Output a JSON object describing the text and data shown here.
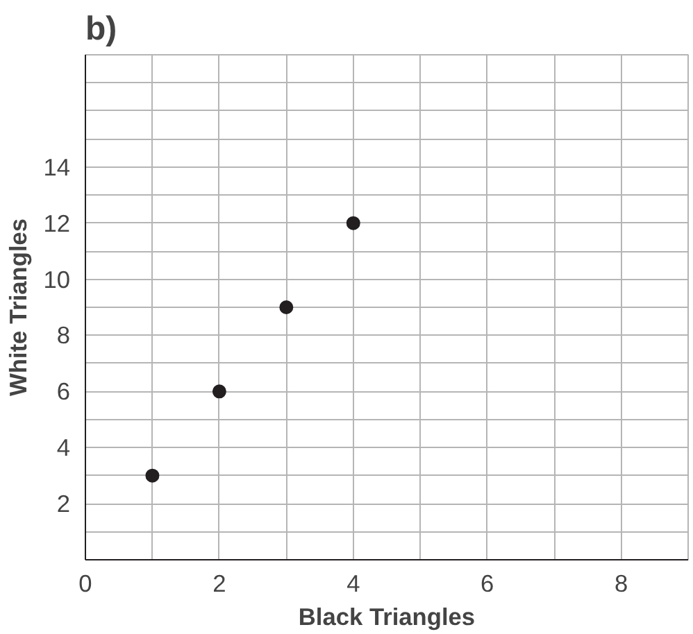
{
  "chart_data": {
    "type": "scatter",
    "title": "b)",
    "xlabel": "Black Triangles",
    "ylabel": "White Triangles",
    "x": [
      1,
      2,
      3,
      4
    ],
    "series": [
      {
        "color": "#231f20",
        "values": [
          3,
          6,
          9,
          12
        ]
      }
    ],
    "marker": "circle",
    "grid": true,
    "xlim": [
      0,
      9
    ],
    "ylim": [
      0,
      18
    ],
    "xticks": [
      0,
      {
        "value": 1,
        "label": null
      },
      2,
      {
        "value": 3,
        "label": null
      },
      4,
      {
        "value": 5,
        "label": null
      },
      6,
      {
        "value": 7,
        "label": null
      },
      8,
      {
        "value": 9,
        "label": null
      }
    ],
    "yticks": [
      {
        "value": 1,
        "label": null
      },
      2,
      {
        "value": 3,
        "label": null
      },
      4,
      {
        "value": 5,
        "label": null
      },
      6,
      {
        "value": 7,
        "label": null
      },
      8,
      {
        "value": 9,
        "label": null
      },
      10,
      {
        "value": 11,
        "label": null
      },
      12,
      {
        "value": 13,
        "label": null
      },
      14,
      {
        "value": 15,
        "label": null
      },
      {
        "value": 16,
        "label": null
      },
      {
        "value": 17,
        "label": null
      },
      {
        "value": 18,
        "label": null
      }
    ]
  }
}
